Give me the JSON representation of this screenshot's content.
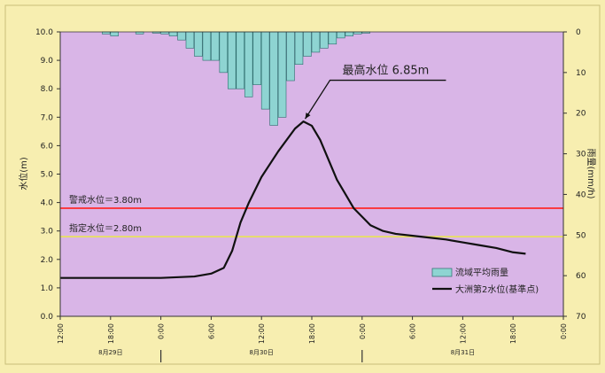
{
  "chart_data": {
    "type": "line",
    "title": "",
    "left_axis": {
      "label": "水位(m)",
      "min": 0,
      "max": 10,
      "ticks": [
        "0.0",
        "1.0",
        "2.0",
        "3.0",
        "4.0",
        "5.0",
        "6.0",
        "7.0",
        "8.0",
        "9.0",
        "10.0"
      ]
    },
    "right_axis": {
      "label": "雨量(mm/h)",
      "min": 0,
      "max": 70,
      "inverted": true,
      "ticks": [
        "0",
        "10",
        "20",
        "30",
        "40",
        "50",
        "60",
        "70"
      ]
    },
    "x_axis": {
      "start_hour": 0,
      "end_hour": 60,
      "tick_labels": [
        "12:00",
        "18:00",
        "0:00",
        "6:00",
        "12:00",
        "18:00",
        "0:00",
        "6:00",
        "12:00",
        "18:00",
        "0:00"
      ],
      "date_labels": [
        {
          "text": "8月29日",
          "hour": 6
        },
        {
          "text": "8月30日",
          "hour": 24
        },
        {
          "text": "8月31日",
          "hour": 48
        }
      ],
      "day_dividers": [
        12,
        36
      ]
    },
    "reference_lines": [
      {
        "label": "警戒水位＝3.80m",
        "value": 3.8,
        "color": "#ff2a2a"
      },
      {
        "label": "指定水位＝2.80m",
        "value": 2.8,
        "color": "#e8e060"
      }
    ],
    "annotation": {
      "text": "最高水位 6.85m",
      "hour": 29,
      "value": 6.85
    },
    "series": [
      {
        "name": "流域平均雨量",
        "kind": "bar",
        "axis": "right",
        "color": "#8ed4d2",
        "bar_width_hours": 1,
        "values": [
          {
            "h": 5,
            "v": 0.5
          },
          {
            "h": 6,
            "v": 1
          },
          {
            "h": 9,
            "v": 0.5
          },
          {
            "h": 11,
            "v": 0.3
          },
          {
            "h": 12,
            "v": 0.5
          },
          {
            "h": 13,
            "v": 1
          },
          {
            "h": 14,
            "v": 2
          },
          {
            "h": 15,
            "v": 4
          },
          {
            "h": 16,
            "v": 6
          },
          {
            "h": 17,
            "v": 7
          },
          {
            "h": 18,
            "v": 7
          },
          {
            "h": 19,
            "v": 10
          },
          {
            "h": 20,
            "v": 14
          },
          {
            "h": 21,
            "v": 14
          },
          {
            "h": 22,
            "v": 16
          },
          {
            "h": 23,
            "v": 13
          },
          {
            "h": 24,
            "v": 19
          },
          {
            "h": 25,
            "v": 23
          },
          {
            "h": 26,
            "v": 21
          },
          {
            "h": 27,
            "v": 12
          },
          {
            "h": 28,
            "v": 8
          },
          {
            "h": 29,
            "v": 6
          },
          {
            "h": 30,
            "v": 5
          },
          {
            "h": 31,
            "v": 4
          },
          {
            "h": 32,
            "v": 3
          },
          {
            "h": 33,
            "v": 1.5
          },
          {
            "h": 34,
            "v": 1
          },
          {
            "h": 35,
            "v": 0.5
          },
          {
            "h": 36,
            "v": 0.3
          }
        ]
      },
      {
        "name": "大洲第2水位(基準点)",
        "kind": "line",
        "axis": "left",
        "color": "#111111",
        "points": [
          {
            "h": 0,
            "v": 1.35
          },
          {
            "h": 6,
            "v": 1.35
          },
          {
            "h": 12,
            "v": 1.35
          },
          {
            "h": 16,
            "v": 1.4
          },
          {
            "h": 18,
            "v": 1.5
          },
          {
            "h": 19.5,
            "v": 1.7
          },
          {
            "h": 20.5,
            "v": 2.3
          },
          {
            "h": 21.5,
            "v": 3.3
          },
          {
            "h": 22.5,
            "v": 4.0
          },
          {
            "h": 24,
            "v": 4.9
          },
          {
            "h": 26,
            "v": 5.8
          },
          {
            "h": 28,
            "v": 6.6
          },
          {
            "h": 29,
            "v": 6.85
          },
          {
            "h": 30,
            "v": 6.7
          },
          {
            "h": 31,
            "v": 6.2
          },
          {
            "h": 32,
            "v": 5.5
          },
          {
            "h": 33,
            "v": 4.8
          },
          {
            "h": 34,
            "v": 4.3
          },
          {
            "h": 35,
            "v": 3.8
          },
          {
            "h": 36,
            "v": 3.5
          },
          {
            "h": 37,
            "v": 3.2
          },
          {
            "h": 38.5,
            "v": 3.0
          },
          {
            "h": 40,
            "v": 2.9
          },
          {
            "h": 43,
            "v": 2.8
          },
          {
            "h": 46,
            "v": 2.7
          },
          {
            "h": 48,
            "v": 2.6
          },
          {
            "h": 50,
            "v": 2.5
          },
          {
            "h": 52,
            "v": 2.4
          },
          {
            "h": 54,
            "v": 2.25
          },
          {
            "h": 55.5,
            "v": 2.2
          }
        ]
      }
    ],
    "legend": {
      "position": "bottom-right"
    }
  }
}
